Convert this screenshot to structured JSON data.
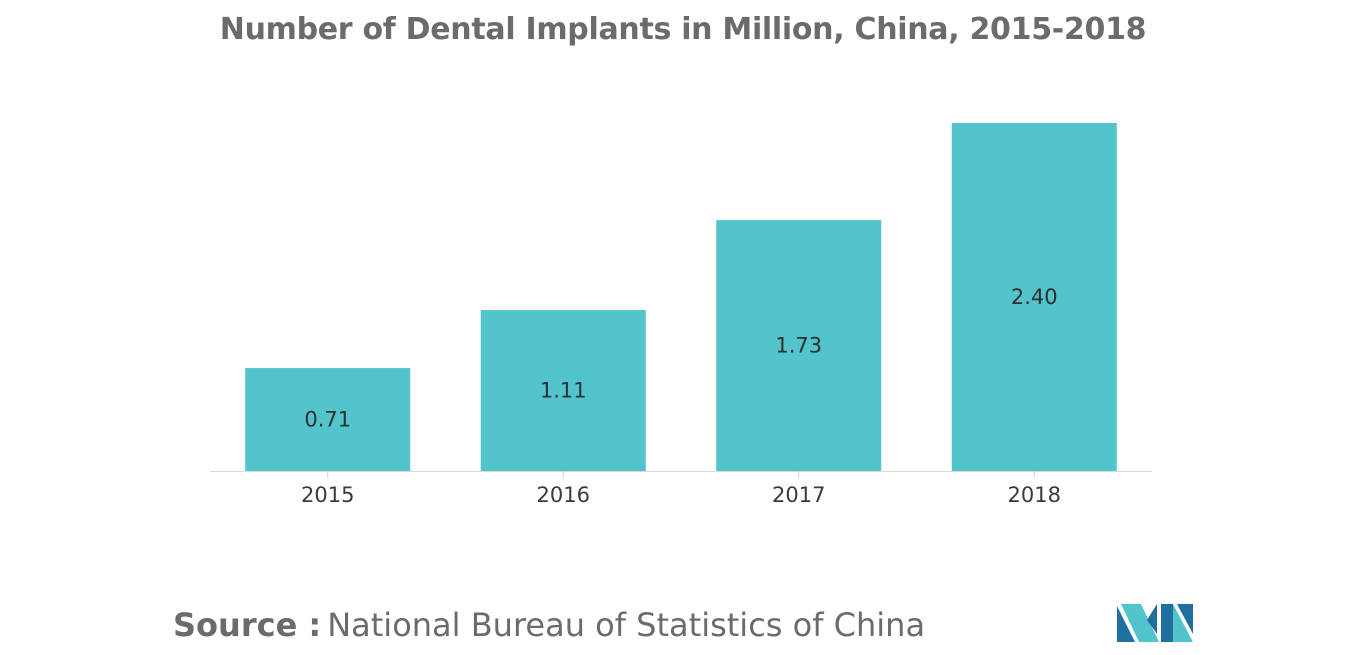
{
  "chart_data": {
    "type": "bar",
    "title": "Number of Dental Implants in Million, China, 2015-2018",
    "categories": [
      "2015",
      "2016",
      "2017",
      "2018"
    ],
    "values": [
      0.71,
      1.11,
      1.73,
      2.4
    ],
    "value_labels": [
      "0.71",
      "1.11",
      "1.73",
      "2.40"
    ],
    "xlabel": "",
    "ylabel": "",
    "ylim": [
      0,
      2.4
    ],
    "grid": false,
    "legend": "none",
    "bar_color": "#52c4cb"
  },
  "source": {
    "label": "Source :",
    "text": "National Bureau of Statistics of China"
  },
  "logo": {
    "icon": "mordor-intelligence-logo",
    "colors": [
      "#1f6f9f",
      "#52c4cb"
    ]
  }
}
